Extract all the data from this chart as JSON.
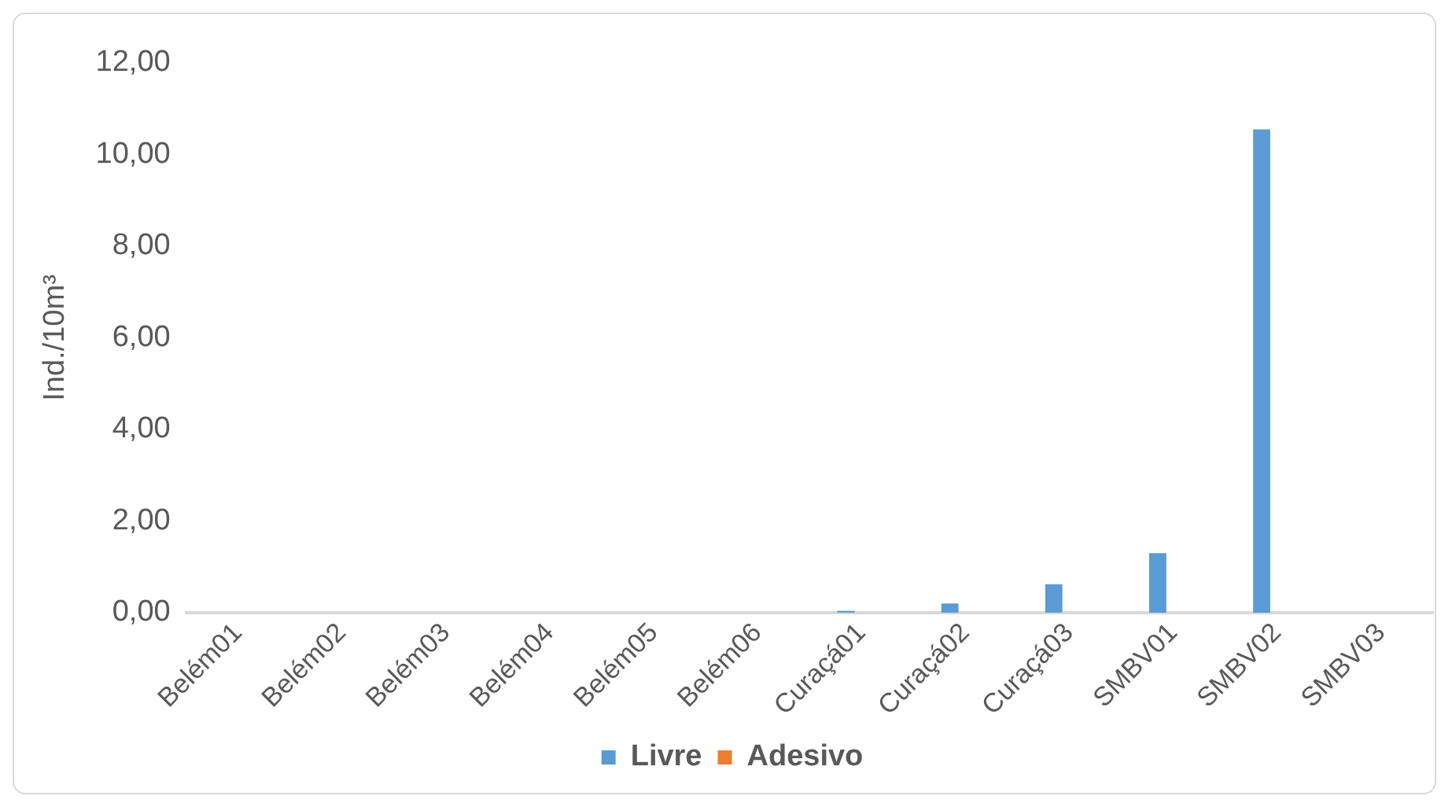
{
  "chart_data": {
    "type": "bar",
    "ylabel": "Ind./10m³",
    "categories": [
      "Belém01",
      "Belém02",
      "Belém03",
      "Belém04",
      "Belém05",
      "Belém06",
      "Curaçá01",
      "Curaçá02",
      "Curaçá03",
      "SMBV01",
      "SMBV02",
      "SMBV03"
    ],
    "series": [
      {
        "name": "Livre",
        "color": "#5b9bd5",
        "values": [
          0,
          0,
          0,
          0,
          0,
          0,
          0.04,
          0.2,
          0.62,
          1.3,
          10.55,
          0
        ]
      },
      {
        "name": "Adesivo",
        "color": "#ed7d31",
        "values": [
          0,
          0,
          0,
          0,
          0,
          0,
          0,
          0,
          0,
          0,
          0,
          0
        ]
      }
    ],
    "ylim": [
      0,
      12
    ],
    "yticks": [
      {
        "value": 0,
        "label": "0,00"
      },
      {
        "value": 2,
        "label": "2,00"
      },
      {
        "value": 4,
        "label": "4,00"
      },
      {
        "value": 6,
        "label": "6,00"
      },
      {
        "value": 8,
        "label": "8,00"
      },
      {
        "value": 10,
        "label": "10,00"
      },
      {
        "value": 12,
        "label": "12,00"
      }
    ],
    "grid": false,
    "legend": "bottom"
  }
}
